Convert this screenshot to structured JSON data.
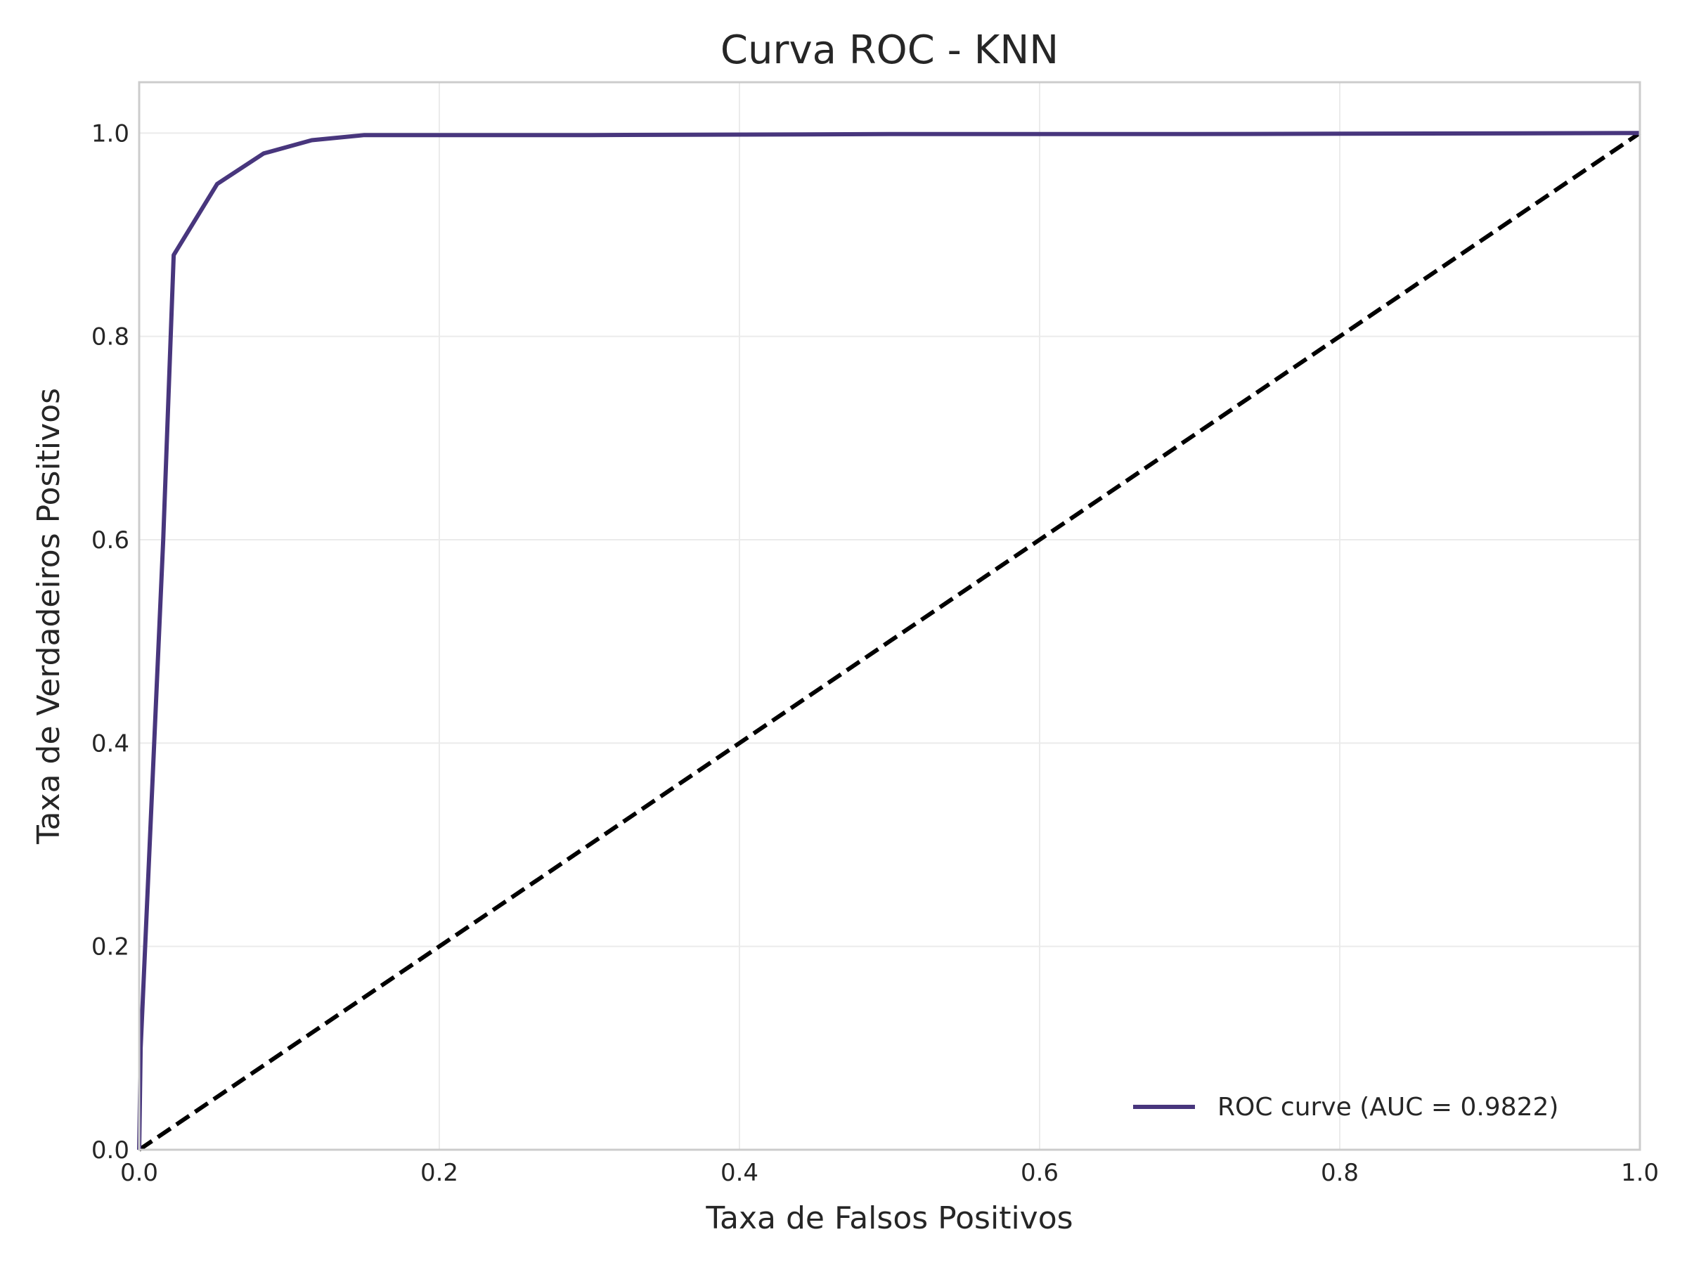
{
  "chart_data": {
    "type": "line",
    "title": "Curva ROC - KNN",
    "xlabel": "Taxa de Falsos Positivos",
    "ylabel": "Taxa de Verdadeiros Positivos",
    "xlim": [
      0.0,
      1.0
    ],
    "ylim": [
      0.0,
      1.05
    ],
    "xticks": [
      0.0,
      0.2,
      0.4,
      0.6,
      0.8,
      1.0
    ],
    "xtick_labels": [
      "0.0",
      "0.2",
      "0.4",
      "0.6",
      "0.8",
      "1.0"
    ],
    "yticks": [
      0.0,
      0.2,
      0.4,
      0.6,
      0.8,
      1.0
    ],
    "ytick_labels": [
      "0.0",
      "0.2",
      "0.4",
      "0.6",
      "0.8",
      "1.0"
    ],
    "grid": true,
    "legend_position": "lower-right",
    "series": [
      {
        "name": "ROC curve (AUC = 0.9822)",
        "color": "#48367d",
        "style": "solid",
        "x": [
          0.0,
          0.001,
          0.016,
          0.023,
          0.052,
          0.083,
          0.115,
          0.15,
          0.3,
          0.5,
          0.7,
          1.0
        ],
        "y": [
          0.0,
          0.1,
          0.6,
          0.88,
          0.95,
          0.98,
          0.993,
          0.998,
          0.998,
          0.999,
          0.999,
          1.0
        ]
      },
      {
        "name": "",
        "color": "#000000",
        "style": "dashed",
        "x": [
          0.0,
          1.0
        ],
        "y": [
          0.0,
          1.0
        ]
      }
    ]
  }
}
